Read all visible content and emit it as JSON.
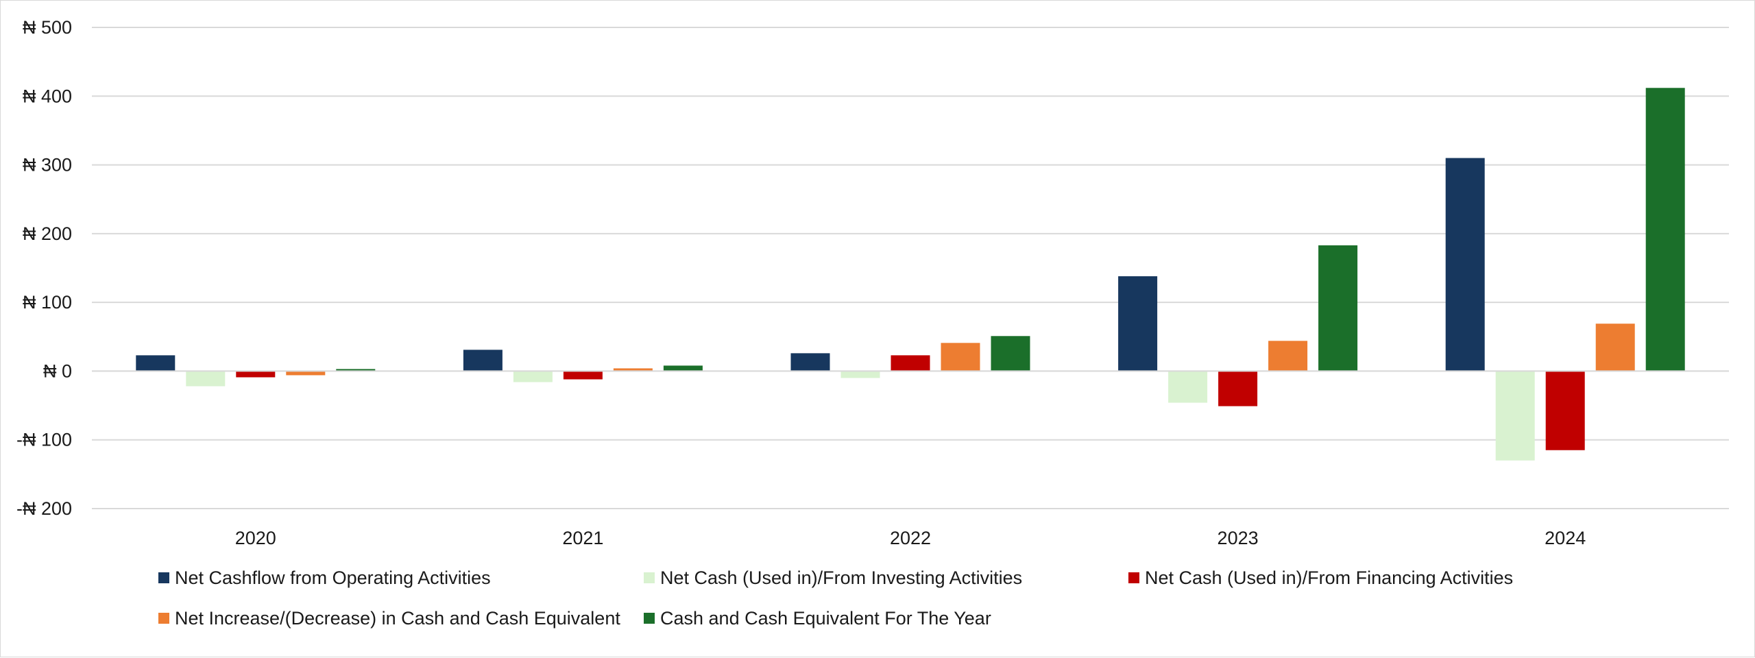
{
  "chart_data": {
    "type": "bar",
    "title": "",
    "xlabel": "",
    "ylabel": "",
    "currency_symbol": "₦",
    "ylim": [
      -200,
      500
    ],
    "yticks": [
      -200,
      -100,
      0,
      100,
      200,
      300,
      400,
      500
    ],
    "ytick_labels": [
      "-₦ 200",
      "-₦ 100",
      "₦ 0",
      "₦ 100",
      "₦ 200",
      "₦ 300",
      "₦ 400",
      "₦ 500"
    ],
    "categories": [
      "2020",
      "2021",
      "2022",
      "2023",
      "2024"
    ],
    "grid": true,
    "legend_position": "bottom",
    "series": [
      {
        "name": "Net Cashflow from Operating Activities",
        "color": "#17375e",
        "values": [
          23,
          31,
          26,
          138,
          310
        ]
      },
      {
        "name": "Net Cash (Used in)/From Investing Activities",
        "color": "#d9f2d0",
        "values": [
          -22,
          -16,
          -10,
          -46,
          -130
        ]
      },
      {
        "name": "Net Cash (Used in)/From Financing Activities",
        "color": "#c00000",
        "values": [
          -9,
          -12,
          23,
          -51,
          -115
        ]
      },
      {
        "name": "Net Increase/(Decrease) in Cash and Cash Equivalent",
        "color": "#ed7d31",
        "values": [
          -6,
          4,
          41,
          44,
          69
        ]
      },
      {
        "name": "Cash and Cash Equivalent For The Year",
        "color": "#1b6f2a",
        "values": [
          3,
          8,
          51,
          183,
          412
        ]
      }
    ]
  }
}
